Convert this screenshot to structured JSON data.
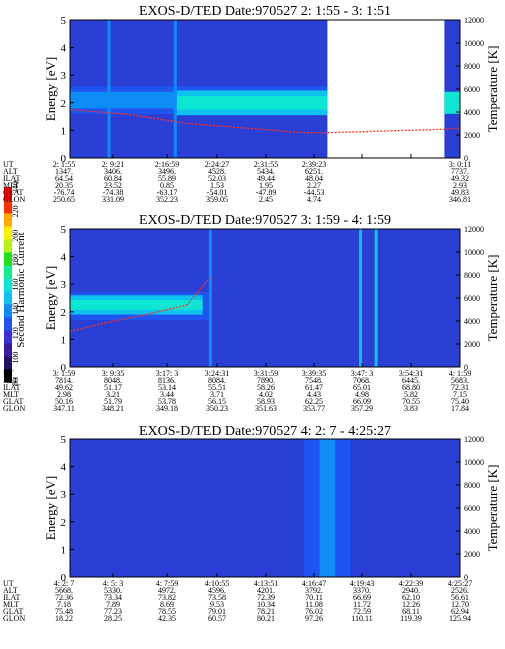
{
  "colors": {
    "background_blue": "#2a3fd6",
    "scale": [
      "#000000",
      "#241060",
      "#3a1aa0",
      "#3d2fd8",
      "#1e55f0",
      "#0d8cf5",
      "#0cc2ee",
      "#0ce6d2",
      "#10f090",
      "#20e020",
      "#b8f010",
      "#fff000",
      "#ffa800",
      "#ff3000",
      "#ff0000"
    ],
    "trace": "#ff3020",
    "gap": "#ffffff"
  },
  "colorbar": {
    "title": "Second Harmonic Current",
    "ticks": [
      "80",
      "100",
      "120",
      "140",
      "160",
      "180",
      "200",
      "220",
      "240"
    ]
  },
  "row_labels": [
    "UT",
    "ALT",
    "ILAT",
    "MLT",
    "GLAT",
    "GLON"
  ],
  "panels": [
    {
      "title": "EXOS-D/TED   Date:970527  2: 1:55 - 3: 1:51",
      "ylabel_left": "Energy [eV]",
      "ylabel_right": "Temperature [K]",
      "columns": [
        {
          "UT": "2: 1:55",
          "ALT": "1347.",
          "ILAT": "64.54",
          "MLT": "20.35",
          "GLAT": "-76.74",
          "GLON": "250.65"
        },
        {
          "UT": "2: 9:21",
          "ALT": "3406.",
          "ILAT": "60.84",
          "MLT": "23.52",
          "GLAT": "-74.38",
          "GLON": "331.09"
        },
        {
          "UT": "2:16:59",
          "ALT": "3496.",
          "ILAT": "55.89",
          "MLT": "0.85",
          "GLAT": "-63.17",
          "GLON": "352.23"
        },
        {
          "UT": "2:24:27",
          "ALT": "4528.",
          "ILAT": "52.03",
          "MLT": "1.53",
          "GLAT": "-54.01",
          "GLON": "359.05"
        },
        {
          "UT": "2:31:55",
          "ALT": "5434.",
          "ILAT": "49.44",
          "MLT": "1.95",
          "GLAT": "-47.89",
          "GLON": "2.45"
        },
        {
          "UT": "2:39:23",
          "ALT": "6251.",
          "ILAT": "48.04",
          "MLT": "2.27",
          "GLAT": "-44.53",
          "GLON": "4.74"
        },
        {
          "UT": "",
          "ALT": "",
          "ILAT": "",
          "MLT": "",
          "GLAT": "",
          "GLON": ""
        },
        {
          "UT": "",
          "ALT": "",
          "ILAT": "",
          "MLT": "",
          "GLAT": "",
          "GLON": ""
        },
        {
          "UT": "3: 0:11",
          "ALT": "7737.",
          "ILAT": "49.32",
          "MLT": "2.93",
          "GLAT": "49.83",
          "GLON": "346.81"
        }
      ]
    },
    {
      "title": "EXOS-D/TED   Date:970527  3: 1:59 - 4: 1:59",
      "ylabel_left": "Energy [eV]",
      "ylabel_right": "Temperature [K]",
      "columns": [
        {
          "UT": "3: 1:59",
          "ALT": "7814.",
          "ILAT": "49.62",
          "MLT": "2.98",
          "GLAT": "50.16",
          "GLON": "347.11"
        },
        {
          "UT": "3: 9:35",
          "ALT": "8048.",
          "ILAT": "51.17",
          "MLT": "3.21",
          "GLAT": "51.79",
          "GLON": "348.21"
        },
        {
          "UT": "3:17: 3",
          "ALT": "8136.",
          "ILAT": "53.14",
          "MLT": "3.44",
          "GLAT": "53.78",
          "GLON": "349.18"
        },
        {
          "UT": "3:24:31",
          "ALT": "8084.",
          "ILAT": "55.51",
          "MLT": "3.71",
          "GLAT": "56.15",
          "GLON": "350.23"
        },
        {
          "UT": "3:31:59",
          "ALT": "7890.",
          "ILAT": "58.26",
          "MLT": "4.02",
          "GLAT": "58.93",
          "GLON": "351.63"
        },
        {
          "UT": "3:39:35",
          "ALT": "7548.",
          "ILAT": "61.47",
          "MLT": "4.43",
          "GLAT": "62.25",
          "GLON": "353.77"
        },
        {
          "UT": "3:47: 3",
          "ALT": "7068.",
          "ILAT": "65.01",
          "MLT": "4.98",
          "GLAT": "66.09",
          "GLON": "357.29"
        },
        {
          "UT": "3:54:31",
          "ALT": "6445.",
          "ILAT": "68.80",
          "MLT": "5.82",
          "GLAT": "70.55",
          "GLON": "3.83"
        },
        {
          "UT": "4: 1:59",
          "ALT": "5683.",
          "ILAT": "72.31",
          "MLT": "7.15",
          "GLAT": "75.40",
          "GLON": "17.84"
        }
      ]
    },
    {
      "title": "EXOS-D/TED   Date:970527  4: 2: 7 - 4:25:27",
      "ylabel_left": "Energy [eV]",
      "ylabel_right": "Temperature [K]",
      "columns": [
        {
          "UT": "4: 2: 7",
          "ALT": "5668.",
          "ILAT": "72.36",
          "MLT": "7.18",
          "GLAT": "75.48",
          "GLON": "18.22"
        },
        {
          "UT": "4: 5: 3",
          "ALT": "5330.",
          "ILAT": "73.34",
          "MLT": "7.89",
          "GLAT": "77.23",
          "GLON": "28.25"
        },
        {
          "UT": "4: 7:59",
          "ALT": "4972.",
          "ILAT": "73.82",
          "MLT": "8.69",
          "GLAT": "78.55",
          "GLON": "42.35"
        },
        {
          "UT": "4:10:55",
          "ALT": "4596.",
          "ILAT": "73.58",
          "MLT": "9.53",
          "GLAT": "79.01",
          "GLON": "60.57"
        },
        {
          "UT": "4:13:51",
          "ALT": "4201.",
          "ILAT": "72.39",
          "MLT": "10.34",
          "GLAT": "78.21",
          "GLON": "80.21"
        },
        {
          "UT": "4:16:47",
          "ALT": "3792.",
          "ILAT": "70.11",
          "MLT": "11.08",
          "GLAT": "76.02",
          "GLON": "97.26"
        },
        {
          "UT": "4:19:43",
          "ALT": "3370.",
          "ILAT": "66.69",
          "MLT": "11.72",
          "GLAT": "72.59",
          "GLON": "110.11"
        },
        {
          "UT": "4:22:39",
          "ALT": "2940.",
          "ILAT": "62.10",
          "MLT": "12.26",
          "GLAT": "68.11",
          "GLON": "119.39"
        },
        {
          "UT": "4:25:27",
          "ALT": "2526.",
          "ILAT": "56.61",
          "MLT": "12.70",
          "GLAT": "62.94",
          "GLON": "125.94"
        }
      ]
    }
  ],
  "chart_data": [
    {
      "type": "heatmap",
      "title": "EXOS-D/TED   Date:970527  2: 1:55 - 3: 1:51",
      "ylabel": "Energy [eV]",
      "y2label": "Temperature [K]",
      "ylim": [
        0,
        5
      ],
      "y2lim": [
        0,
        12000
      ],
      "yticks": [
        "0",
        "1",
        "2",
        "3",
        "4",
        "5"
      ],
      "y2ticks": [
        "0",
        "2000",
        "4000",
        "6000",
        "8000",
        "10000",
        "12000"
      ],
      "xlim": [
        0,
        1
      ],
      "data_gap": [
        0.66,
        0.96
      ],
      "bands": [
        {
          "x": [
            0.0,
            0.66
          ],
          "center": 2.1,
          "halfwidth": 0.5,
          "level": 4
        },
        {
          "x": [
            0.0,
            0.66
          ],
          "center": 2.1,
          "halfwidth": 0.3,
          "level": 5
        },
        {
          "x": [
            0.27,
            0.66
          ],
          "center": 2.0,
          "halfwidth": 0.45,
          "level": 6
        },
        {
          "x": [
            0.27,
            0.66
          ],
          "center": 2.0,
          "halfwidth": 0.25,
          "level": 7
        },
        {
          "x": [
            0.96,
            1.0
          ],
          "center": 2.0,
          "halfwidth": 0.4,
          "level": 7
        }
      ],
      "spikes": [
        {
          "x": 0.1,
          "level": 5
        },
        {
          "x": 0.27,
          "level": 5
        }
      ],
      "temperature": {
        "x": [
          0.0,
          0.15,
          0.3,
          0.45,
          0.6,
          0.66,
          0.96,
          1.0
        ],
        "y": [
          4200,
          3800,
          3000,
          2600,
          2200,
          2200,
          2500,
          2600
        ]
      }
    },
    {
      "type": "heatmap",
      "title": "EXOS-D/TED   Date:970527  3: 1:59 - 4: 1:59",
      "ylabel": "Energy [eV]",
      "y2label": "Temperature [K]",
      "ylim": [
        0,
        5
      ],
      "y2lim": [
        0,
        12000
      ],
      "yticks": [
        "0",
        "1",
        "2",
        "3",
        "4",
        "5"
      ],
      "y2ticks": [
        "0",
        "2000",
        "4000",
        "6000",
        "8000",
        "10000",
        "12000"
      ],
      "xlim": [
        0,
        1
      ],
      "data_gap": [],
      "bands": [
        {
          "x": [
            0.0,
            0.36
          ],
          "center": 2.2,
          "halfwidth": 0.5,
          "level": 4
        },
        {
          "x": [
            0.0,
            0.34
          ],
          "center": 2.25,
          "halfwidth": 0.35,
          "level": 6
        },
        {
          "x": [
            0.0,
            0.34
          ],
          "center": 2.25,
          "halfwidth": 0.18,
          "level": 7
        }
      ],
      "spikes": [
        {
          "x": 0.36,
          "level": 5
        },
        {
          "x": 0.745,
          "level": 6
        },
        {
          "x": 0.785,
          "level": 6
        }
      ],
      "temperature": {
        "x": [
          0.0,
          0.1,
          0.2,
          0.3,
          0.36
        ],
        "y": [
          3100,
          3900,
          4600,
          5400,
          7800
        ]
      }
    },
    {
      "type": "heatmap",
      "title": "EXOS-D/TED   Date:970527  4: 2: 7 - 4:25:27",
      "ylabel": "Energy [eV]",
      "y2label": "Temperature [K]",
      "ylim": [
        0,
        5
      ],
      "y2lim": [
        0,
        12000
      ],
      "yticks": [
        "0",
        "1",
        "2",
        "3",
        "4",
        "5"
      ],
      "y2ticks": [
        "0",
        "2000",
        "4000",
        "6000",
        "8000",
        "10000",
        "12000"
      ],
      "xlim": [
        0,
        1
      ],
      "data_gap": [],
      "bands": [
        {
          "x": [
            0.6,
            0.72
          ],
          "center": 2.5,
          "halfwidth": 2.5,
          "level": 4
        },
        {
          "x": [
            0.64,
            0.68
          ],
          "center": 2.5,
          "halfwidth": 2.5,
          "level": 5
        }
      ],
      "spikes": [],
      "temperature": {
        "x": [],
        "y": []
      }
    }
  ]
}
